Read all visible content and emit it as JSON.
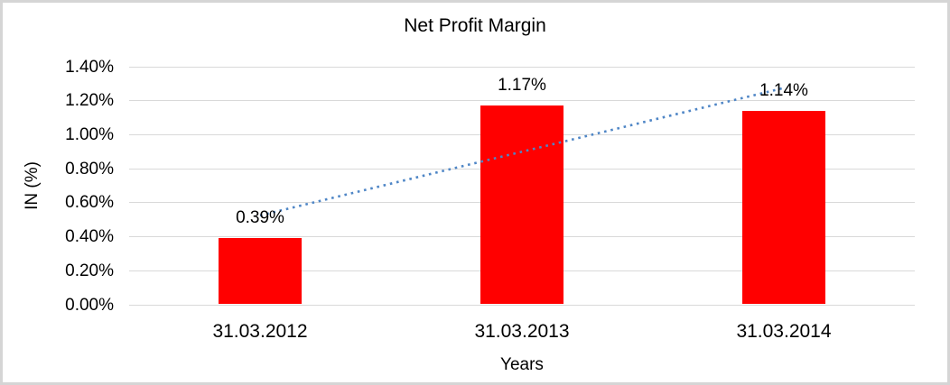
{
  "frame": {
    "background": "#ffffff",
    "border_color": "#d5d5d5"
  },
  "chart_data": {
    "type": "bar",
    "title": "Net Profit Margin",
    "xlabel": "Years",
    "ylabel": "IN (%)",
    "categories": [
      "31.03.2012",
      "31.03.2013",
      "31.03.2014"
    ],
    "values": [
      0.39,
      1.17,
      1.14
    ],
    "value_labels": [
      "0.39%",
      "1.17%",
      "1.14%"
    ],
    "y_ticks": [
      "0.00%",
      "0.20%",
      "0.40%",
      "0.60%",
      "0.80%",
      "1.00%",
      "1.20%",
      "1.40%"
    ],
    "ylim": [
      0,
      1.4
    ],
    "grid": true,
    "legend": "none",
    "bar_color": "#ff0000",
    "gridline_color": "#d9d9d9",
    "trendline": {
      "style": "dotted",
      "color": "#4f86c6"
    }
  }
}
